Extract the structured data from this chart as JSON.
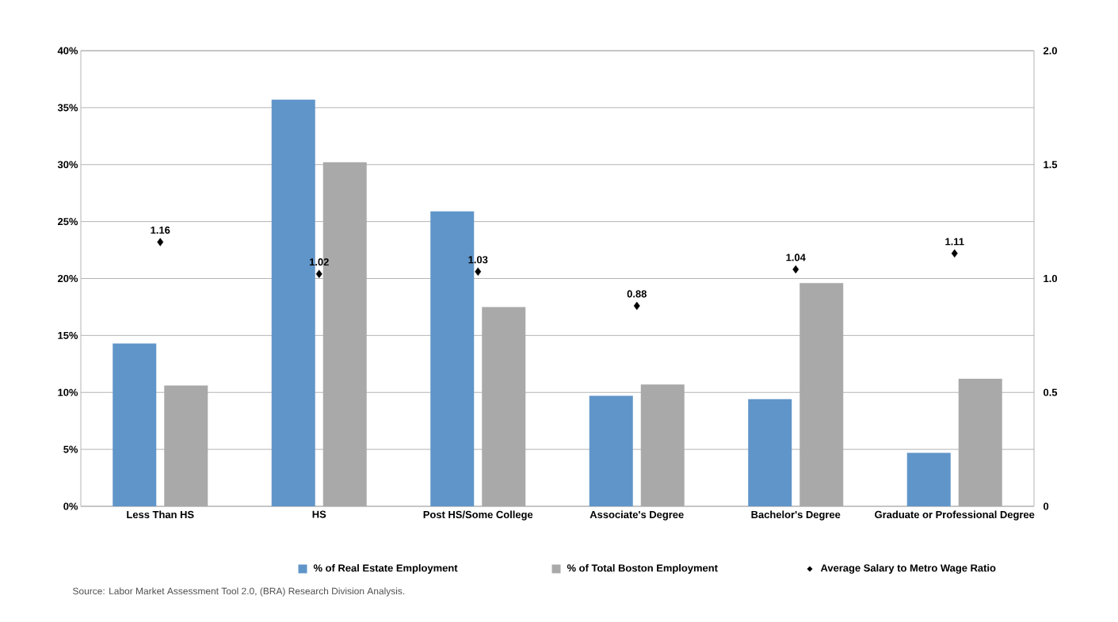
{
  "chart_data": {
    "type": "bar",
    "categories": [
      "Less Than HS",
      "HS",
      "Post HS/Some College",
      "Associate's Degree",
      "Bachelor's Degree",
      "Graduate or Professional Degree"
    ],
    "series": [
      {
        "name": "% of Real Estate Employment",
        "color": "#6095c9",
        "values": [
          14.3,
          35.7,
          25.9,
          9.7,
          9.4,
          4.7
        ]
      },
      {
        "name": "% of Total Boston Employment",
        "color": "#a9a9a9",
        "values": [
          10.6,
          30.2,
          17.5,
          10.7,
          19.6,
          11.2
        ]
      },
      {
        "name": "Average Salary to Metro Wage Ratio",
        "type": "scatter",
        "axis": "y2",
        "color": "#000000",
        "marker": "diamond",
        "values": [
          1.16,
          1.02,
          1.03,
          0.88,
          1.04,
          1.11
        ],
        "value_labels": [
          "1.16",
          "1.02",
          "1.03",
          "0.88",
          "1.04",
          "1.11"
        ]
      }
    ],
    "ylim": [
      0,
      40
    ],
    "yticks": [
      {
        "value": 0,
        "label": "0%"
      },
      {
        "value": 5,
        "label": "5%"
      },
      {
        "value": 10,
        "label": "10%"
      },
      {
        "value": 15,
        "label": "15%"
      },
      {
        "value": 20,
        "label": "20%"
      },
      {
        "value": 25,
        "label": "25%"
      },
      {
        "value": 30,
        "label": "30%"
      },
      {
        "value": 35,
        "label": "35%"
      },
      {
        "value": 40,
        "label": "40%"
      }
    ],
    "y2lim": [
      0,
      2
    ],
    "y2ticks": [
      0,
      {
        "value": 0.5,
        "label": "0.5"
      },
      {
        "value": 1,
        "label": "1.0"
      },
      {
        "value": 1.5,
        "label": "1.5"
      },
      {
        "value": 2,
        "label": "2.0"
      }
    ],
    "grid": "y",
    "legend": "bottom",
    "annotations": [
      "Source: Labor Market Assessment Tool 2.0, (BRA) Research Division Analysis."
    ]
  }
}
